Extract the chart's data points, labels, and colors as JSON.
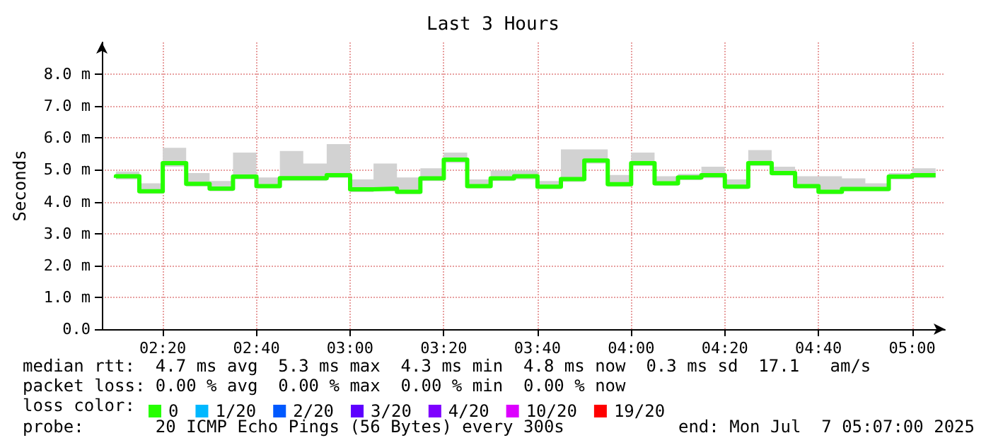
{
  "chart_data": {
    "type": "step",
    "title": "Last 3 Hours",
    "ylabel": "Seconds",
    "x": [
      "2025-07-07T02:10",
      "2025-07-07T02:15",
      "2025-07-07T02:20",
      "2025-07-07T02:25",
      "2025-07-07T02:30",
      "2025-07-07T02:35",
      "2025-07-07T02:40",
      "2025-07-07T02:45",
      "2025-07-07T02:50",
      "2025-07-07T02:55",
      "2025-07-07T03:00",
      "2025-07-07T03:05",
      "2025-07-07T03:10",
      "2025-07-07T03:15",
      "2025-07-07T03:20",
      "2025-07-07T03:25",
      "2025-07-07T03:30",
      "2025-07-07T03:35",
      "2025-07-07T03:40",
      "2025-07-07T03:45",
      "2025-07-07T03:50",
      "2025-07-07T03:55",
      "2025-07-07T04:00",
      "2025-07-07T04:05",
      "2025-07-07T04:10",
      "2025-07-07T04:15",
      "2025-07-07T04:20",
      "2025-07-07T04:25",
      "2025-07-07T04:30",
      "2025-07-07T04:35",
      "2025-07-07T04:40",
      "2025-07-07T04:45",
      "2025-07-07T04:50",
      "2025-07-07T04:55",
      "2025-07-07T05:00",
      "2025-07-07T05:05"
    ],
    "series": [
      {
        "name": "0",
        "color": "#26ff00",
        "values": [
          4.75,
          4.8,
          4.33,
          5.21,
          4.56,
          4.41,
          4.79,
          4.49,
          4.74,
          4.74,
          4.83,
          4.39,
          4.41,
          4.31,
          4.73,
          5.32,
          4.49,
          4.73,
          4.8,
          4.47,
          4.71,
          5.29,
          4.55,
          5.21,
          4.58,
          4.76,
          4.83,
          4.47,
          5.21,
          4.9,
          4.49,
          4.31,
          4.4,
          4.4,
          4.79,
          4.83
        ],
        "lower": [
          4.62,
          4.7,
          4.25,
          5.1,
          4.48,
          4.33,
          4.7,
          4.42,
          4.65,
          4.65,
          4.75,
          4.3,
          4.33,
          4.24,
          4.65,
          5.22,
          4.42,
          4.65,
          4.7,
          4.4,
          4.62,
          5.2,
          4.47,
          5.12,
          4.5,
          4.68,
          4.74,
          4.4,
          5.12,
          4.82,
          4.42,
          4.24,
          4.32,
          4.32,
          4.7,
          4.74
        ],
        "upper": [
          4.95,
          4.95,
          4.58,
          5.69,
          4.9,
          4.65,
          5.54,
          4.76,
          5.59,
          5.2,
          5.81,
          4.7,
          5.2,
          4.76,
          5.05,
          5.54,
          4.7,
          4.98,
          4.98,
          4.65,
          5.64,
          5.64,
          4.84,
          5.54,
          4.8,
          4.87,
          5.1,
          4.7,
          5.62,
          5.1,
          4.8,
          4.8,
          4.73,
          4.58,
          4.9,
          5.05
        ]
      },
      {
        "name": "1/20",
        "color": "#00b8ff",
        "values": [
          null,
          null,
          null,
          null,
          null,
          null,
          null,
          null,
          null,
          null,
          null,
          null,
          null,
          null,
          null,
          null,
          null,
          null,
          null,
          null,
          null,
          null,
          null,
          null,
          null,
          null,
          null,
          null,
          null,
          null,
          null,
          null,
          null,
          null,
          null,
          null
        ]
      },
      {
        "name": "2/20",
        "color": "#0059ff",
        "values": [
          null,
          null,
          null,
          null,
          null,
          null,
          null,
          null,
          null,
          null,
          null,
          null,
          null,
          null,
          null,
          null,
          null,
          null,
          null,
          null,
          null,
          null,
          null,
          null,
          null,
          null,
          null,
          null,
          null,
          null,
          null,
          null,
          null,
          null,
          null,
          null
        ]
      },
      {
        "name": "3/20",
        "color": "#5e00ff",
        "values": [
          null,
          null,
          null,
          null,
          null,
          null,
          null,
          null,
          null,
          null,
          null,
          null,
          null,
          null,
          null,
          null,
          null,
          null,
          null,
          null,
          null,
          null,
          null,
          null,
          null,
          null,
          null,
          null,
          null,
          null,
          null,
          null,
          null,
          null,
          null,
          null
        ]
      },
      {
        "name": "4/20",
        "color": "#7e00ff",
        "values": [
          null,
          null,
          null,
          null,
          null,
          null,
          null,
          null,
          null,
          null,
          null,
          null,
          null,
          null,
          null,
          null,
          null,
          null,
          null,
          null,
          null,
          null,
          null,
          null,
          null,
          null,
          null,
          null,
          null,
          null,
          null,
          null,
          null,
          null,
          null,
          null
        ]
      },
      {
        "name": "10/20",
        "color": "#dd00ff",
        "values": [
          null,
          null,
          null,
          null,
          null,
          null,
          null,
          null,
          null,
          null,
          null,
          null,
          null,
          null,
          null,
          null,
          null,
          null,
          null,
          null,
          null,
          null,
          null,
          null,
          null,
          null,
          null,
          null,
          null,
          null,
          null,
          null,
          null,
          null,
          null,
          null
        ]
      },
      {
        "name": "19/20",
        "color": "#ff0000",
        "values": [
          null,
          null,
          null,
          null,
          null,
          null,
          null,
          null,
          null,
          null,
          null,
          null,
          null,
          null,
          null,
          null,
          null,
          null,
          null,
          null,
          null,
          null,
          null,
          null,
          null,
          null,
          null,
          null,
          null,
          null,
          null,
          null,
          null,
          null,
          null,
          null
        ]
      }
    ],
    "xlim": [
      "2025-07-07T02:07",
      "2025-07-07T05:07"
    ],
    "xticks": [
      {
        "value": "2025-07-07T02:20",
        "label": "02:20"
      },
      {
        "value": "2025-07-07T02:40",
        "label": "02:40"
      },
      {
        "value": "2025-07-07T03:00",
        "label": "03:00"
      },
      {
        "value": "2025-07-07T03:20",
        "label": "03:20"
      },
      {
        "value": "2025-07-07T03:40",
        "label": "03:40"
      },
      {
        "value": "2025-07-07T04:00",
        "label": "04:00"
      },
      {
        "value": "2025-07-07T04:20",
        "label": "04:20"
      },
      {
        "value": "2025-07-07T04:40",
        "label": "04:40"
      },
      {
        "value": "2025-07-07T05:00",
        "label": "05:00"
      }
    ],
    "ylim": [
      0,
      9
    ],
    "yticks": [
      {
        "value": 0,
        "label": "0.0"
      },
      {
        "value": 1,
        "label": "1.0 m"
      },
      {
        "value": 2,
        "label": "2.0 m"
      },
      {
        "value": 3,
        "label": "3.0 m"
      },
      {
        "value": 4,
        "label": "4.0 m"
      },
      {
        "value": 5,
        "label": "5.0 m"
      },
      {
        "value": 6,
        "label": "6.0 m"
      },
      {
        "value": 7,
        "label": "7.0 m"
      },
      {
        "value": 8,
        "label": "8.0 m"
      }
    ],
    "grid": true,
    "legend": "bottom left",
    "legend_title": "loss color:",
    "annotations": [
      "median rtt:  4.7 ms avg  5.3 ms max  4.3 ms min  4.8 ms now  0.3 ms sd  17.1   am/s",
      "packet loss: 0.00 % avg  0.00 % max  0.00 % min  0.00 % now",
      "probe:       20 ICMP Echo Pings (56 Bytes) every 300s",
      "end: Mon Jul  7 05:07:00 2025"
    ]
  }
}
